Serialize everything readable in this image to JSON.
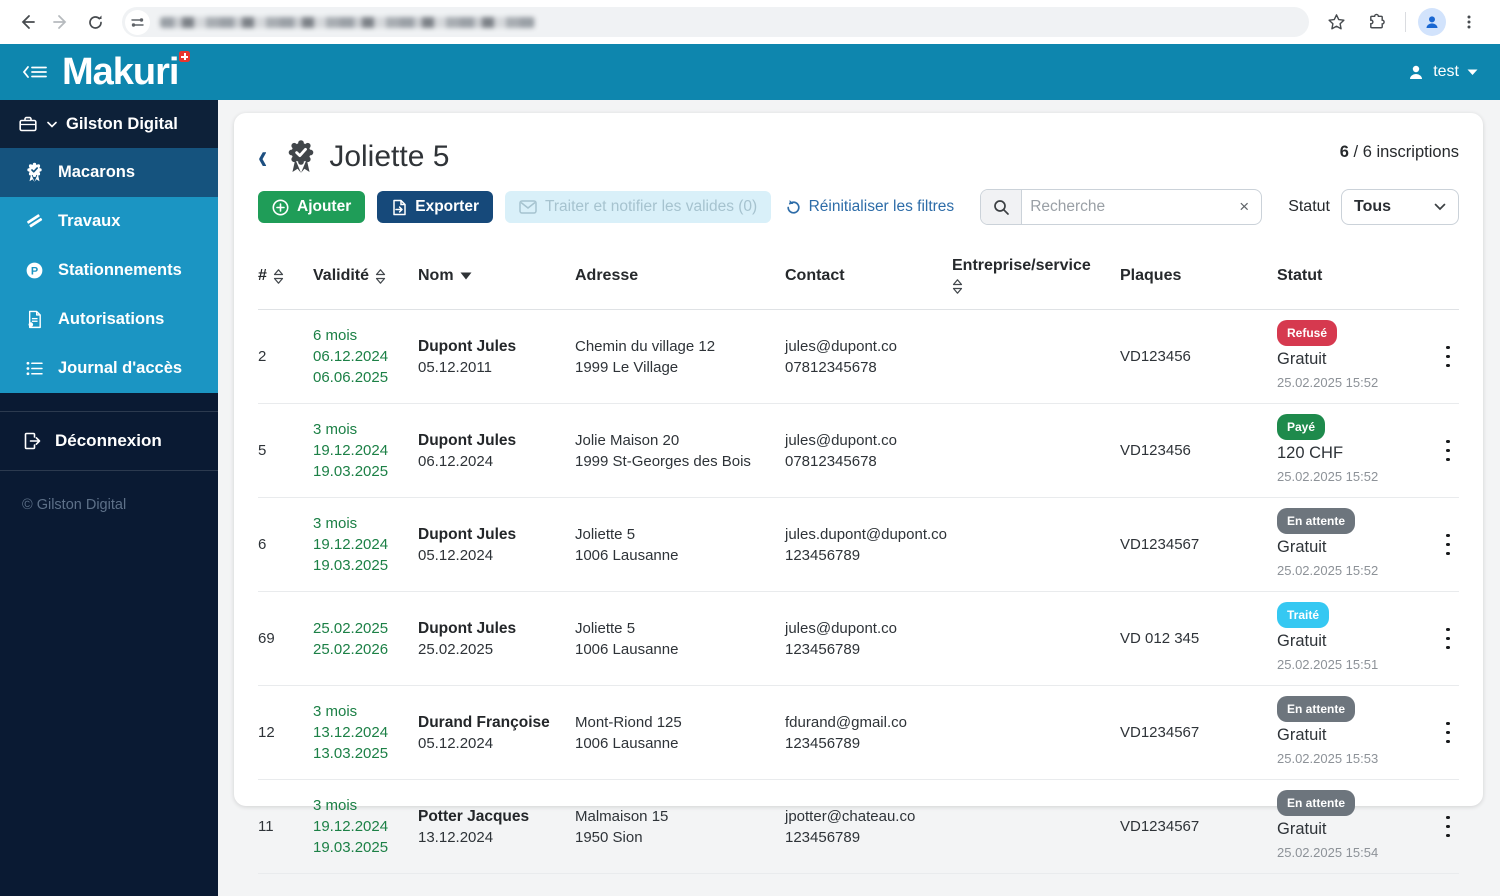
{
  "colors": {
    "header_teal": "#0e86ae",
    "sidebar_blue": "#1b95c3",
    "sidebar_active": "#15537e",
    "sidebar_dark": "#0d2139",
    "validity_green": "#1c8046",
    "button_add_green": "#1f9d58",
    "button_export_navy": "#16497a",
    "badge_refused_red": "#d6394f",
    "badge_paid_green": "#1e8a4c",
    "badge_pending_gray": "#6d757d",
    "badge_processed_cyan": "#35c8f2"
  },
  "app_header": {
    "logo": "Makuri",
    "user": "test"
  },
  "sidebar": {
    "org": "Gilston Digital",
    "items": [
      {
        "label": "Macarons",
        "icon": "rosette-icon",
        "active": true
      },
      {
        "label": "Travaux",
        "icon": "roadworks-icon",
        "active": false
      },
      {
        "label": "Stationnements",
        "icon": "parking-icon",
        "active": false
      },
      {
        "label": "Autorisations",
        "icon": "permit-document-icon",
        "active": false
      },
      {
        "label": "Journal d'accès",
        "icon": "list-icon",
        "active": false
      }
    ],
    "logout": "Déconnexion",
    "copyright": "© Gilston Digital"
  },
  "page": {
    "title": "Joliette 5",
    "inscriptions_count": "6",
    "inscriptions_rest": " / 6 inscriptions",
    "actions": {
      "add": "Ajouter",
      "export": "Exporter",
      "process": "Traiter et notifier les valides (0)"
    },
    "filters": {
      "reset": "Réinitialiser les filtres",
      "search_placeholder": "Recherche",
      "clear": "×",
      "status_label": "Statut",
      "status_value": "Tous"
    }
  },
  "table": {
    "headers": [
      {
        "label": "#",
        "sort": "both"
      },
      {
        "label": "Validité",
        "sort": "both"
      },
      {
        "label": "Nom",
        "sort": "desc"
      },
      {
        "label": "Adresse",
        "sort": "none"
      },
      {
        "label": "Contact",
        "sort": "none"
      },
      {
        "label": "Entreprise/service",
        "sort": "both-wrap"
      },
      {
        "label": "Plaques",
        "sort": "none"
      },
      {
        "label": "Statut",
        "sort": "none"
      }
    ],
    "rows": [
      {
        "num": "2",
        "validity": [
          "6 mois",
          "06.12.2024",
          "06.06.2025"
        ],
        "name": "Dupont Jules",
        "name_date": "05.12.2011",
        "address": [
          "Chemin du village 12",
          "1999 Le Village"
        ],
        "contact": [
          "jules@dupont.co",
          "07812345678"
        ],
        "entreprise": "",
        "plates": "VD123456",
        "status": "Refusé",
        "status_type": "refused",
        "amount": "Gratuit",
        "timestamp": "25.02.2025 15:52"
      },
      {
        "num": "5",
        "validity": [
          "3 mois",
          "19.12.2024",
          "19.03.2025"
        ],
        "name": "Dupont Jules",
        "name_date": "06.12.2024",
        "address": [
          "Jolie Maison 20",
          "1999 St-Georges des Bois"
        ],
        "contact": [
          "jules@dupont.co",
          "07812345678"
        ],
        "entreprise": "",
        "plates": "VD123456",
        "status": "Payé",
        "status_type": "paid",
        "amount": "120 CHF",
        "timestamp": "25.02.2025 15:52"
      },
      {
        "num": "6",
        "validity": [
          "3 mois",
          "19.12.2024",
          "19.03.2025"
        ],
        "name": "Dupont Jules",
        "name_date": "05.12.2024",
        "address": [
          "Joliette 5",
          "1006 Lausanne"
        ],
        "contact": [
          "jules.dupont@dupont.co",
          "123456789"
        ],
        "entreprise": "",
        "plates": "VD1234567",
        "status": "En attente",
        "status_type": "pending",
        "amount": "Gratuit",
        "timestamp": "25.02.2025 15:52"
      },
      {
        "num": "69",
        "validity": [
          "25.02.2025",
          "25.02.2026"
        ],
        "name": "Dupont Jules",
        "name_date": "25.02.2025",
        "address": [
          "Joliette 5",
          "1006 Lausanne"
        ],
        "contact": [
          "jules@dupont.co",
          "123456789"
        ],
        "entreprise": "",
        "plates": "VD 012 345",
        "status": "Traité",
        "status_type": "processed",
        "amount": "Gratuit",
        "timestamp": "25.02.2025 15:51"
      },
      {
        "num": "12",
        "validity": [
          "3 mois",
          "13.12.2024",
          "13.03.2025"
        ],
        "name": "Durand Françoise",
        "name_date": "05.12.2024",
        "address": [
          "Mont-Riond 125",
          "1006 Lausanne"
        ],
        "contact": [
          "fdurand@gmail.co",
          "123456789"
        ],
        "entreprise": "",
        "plates": "VD1234567",
        "status": "En attente",
        "status_type": "pending",
        "amount": "Gratuit",
        "timestamp": "25.02.2025 15:53"
      },
      {
        "num": "11",
        "validity": [
          "3 mois",
          "19.12.2024",
          "19.03.2025"
        ],
        "name": "Potter Jacques",
        "name_date": "13.12.2024",
        "address": [
          "Malmaison 15",
          "1950 Sion"
        ],
        "contact": [
          "jpotter@chateau.co",
          "123456789"
        ],
        "entreprise": "",
        "plates": "VD1234567",
        "status": "En attente",
        "status_type": "pending",
        "amount": "Gratuit",
        "timestamp": "25.02.2025 15:54"
      }
    ]
  }
}
